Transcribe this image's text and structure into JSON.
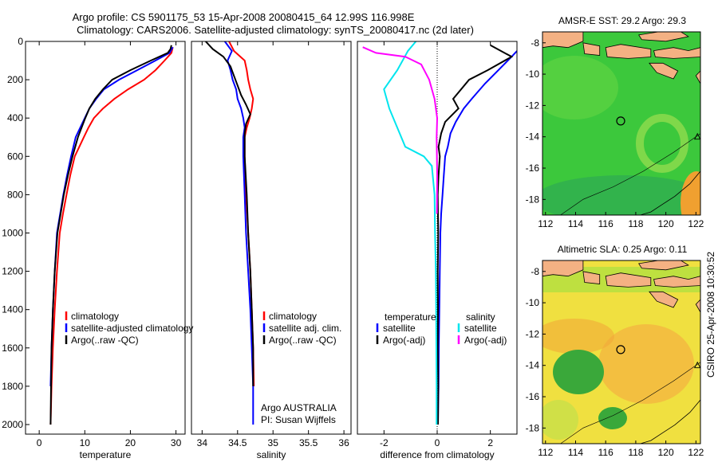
{
  "header": {
    "line1": "Argo profile: CS 5901175_53 15-Apr-2008 20080415_64 12.99S 116.998E",
    "line2": "Climatology: CARS2006. Satellite-adjusted climatology: synTS_20080417.nc (2d later)"
  },
  "side_label": "CSIRO 25-Apr-2008 10:30:52",
  "colors": {
    "climatology": "#ff0000",
    "satellite": "#0000ff",
    "argo": "#000000",
    "salinity_satellite": "#00e5ee",
    "salinity_argo": "#ff00ff",
    "land": "#f4b183",
    "ocean_green": "#3cc83c",
    "ocean_yellow": "#f0e040",
    "marker": "#000000"
  },
  "chart_data": [
    {
      "id": "temperature",
      "type": "line",
      "xlabel": "temperature",
      "ylabel": "",
      "xlim": [
        -3,
        32
      ],
      "ylim": [
        2050,
        0
      ],
      "xticks": [
        0,
        10,
        20,
        30
      ],
      "yticks": [
        0,
        200,
        400,
        600,
        800,
        1000,
        1200,
        1400,
        1600,
        1800,
        2000
      ],
      "legend": [
        "climatology",
        "satellite-adjusted climatology",
        "Argo(..raw -QC)"
      ],
      "legend_position": "lower-right",
      "series": [
        {
          "name": "climatology",
          "color": "#ff0000",
          "x": [
            29.3,
            29.0,
            27.5,
            25.5,
            23.0,
            19.5,
            16.5,
            14.0,
            12.0,
            10.8,
            9.8,
            8.8,
            7.8,
            6.8,
            6.0,
            5.2,
            4.5,
            3.9,
            3.4,
            3.0,
            2.7,
            2.5
          ],
          "y": [
            30,
            60,
            100,
            150,
            200,
            250,
            300,
            350,
            400,
            450,
            500,
            550,
            600,
            700,
            800,
            900,
            1000,
            1200,
            1400,
            1600,
            1800,
            2000
          ]
        },
        {
          "name": "satellite-adjusted climatology",
          "color": "#0000ff",
          "x": [
            29.3,
            28.6,
            25.5,
            21.5,
            17.5,
            14.2,
            12.5,
            11.0,
            10.0,
            9.0,
            8.0,
            7.0,
            6.1,
            5.3,
            4.6,
            3.9,
            3.4,
            3.0,
            2.7,
            2.5
          ],
          "y": [
            30,
            60,
            100,
            150,
            200,
            250,
            300,
            350,
            400,
            450,
            500,
            600,
            700,
            800,
            900,
            1000,
            1200,
            1400,
            1600,
            1800
          ]
        },
        {
          "name": "Argo(..raw -QC)",
          "color": "#000000",
          "x": [
            29.0,
            28.8,
            28.2,
            24.5,
            20.0,
            16.0,
            14.0,
            12.3,
            11.0,
            10.1,
            9.3,
            8.5,
            7.3,
            6.3,
            5.4,
            4.7,
            4.0,
            3.4,
            3.0,
            2.7,
            2.5
          ],
          "y": [
            20,
            40,
            60,
            100,
            150,
            200,
            250,
            300,
            350,
            400,
            450,
            500,
            600,
            700,
            800,
            900,
            1000,
            1200,
            1400,
            1600,
            2000
          ]
        }
      ]
    },
    {
      "id": "salinity",
      "type": "line",
      "xlabel": "salinity",
      "ylabel": "",
      "xlim": [
        33.85,
        36.1
      ],
      "ylim": [
        2050,
        0
      ],
      "xticks": [
        34,
        34.5,
        35,
        35.5,
        36
      ],
      "yticks": [],
      "legend": [
        "climatology",
        "satellite adj. clim.",
        "Argo(..raw -QC)"
      ],
      "legend_position": "lower-right",
      "annotations": [
        "Argo AUSTRALIA",
        "PI: Susan Wijffels"
      ],
      "series": [
        {
          "name": "climatology",
          "color": "#ff0000",
          "x": [
            34.38,
            34.45,
            34.6,
            34.63,
            34.65,
            34.68,
            34.72,
            34.7,
            34.67,
            34.63,
            34.6,
            34.6,
            34.62,
            34.65,
            34.68,
            34.7,
            34.72,
            34.73
          ],
          "y": [
            0,
            50,
            100,
            150,
            200,
            250,
            300,
            350,
            400,
            450,
            500,
            600,
            800,
            1000,
            1200,
            1400,
            1600,
            1800
          ]
        },
        {
          "name": "satellite adj. clim.",
          "color": "#0000ff",
          "x": [
            34.32,
            34.42,
            34.36,
            34.4,
            34.43,
            34.48,
            34.5,
            34.55,
            34.58,
            34.6,
            34.58,
            34.58,
            34.6,
            34.62,
            34.65,
            34.68,
            34.7,
            34.72,
            34.72
          ],
          "y": [
            0,
            50,
            100,
            150,
            200,
            250,
            300,
            350,
            400,
            450,
            500,
            600,
            800,
            1000,
            1200,
            1400,
            1600,
            1800,
            2000
          ]
        },
        {
          "name": "Argo(..raw -QC)",
          "color": "#000000",
          "x": [
            34.05,
            34.15,
            34.3,
            34.4,
            34.45,
            34.5,
            34.55,
            34.62,
            34.68,
            34.62,
            34.6,
            34.6,
            34.63,
            34.65,
            34.68,
            34.7,
            34.72,
            34.72
          ],
          "y": [
            0,
            40,
            80,
            130,
            180,
            230,
            280,
            330,
            380,
            430,
            480,
            600,
            800,
            1000,
            1200,
            1400,
            1600,
            1800
          ]
        }
      ]
    },
    {
      "id": "difference",
      "type": "line",
      "xlabel": "difference from climatology",
      "ylabel": "",
      "xlim": [
        -3,
        3
      ],
      "ylim": [
        2050,
        0
      ],
      "xticks": [
        -2,
        0,
        2
      ],
      "yticks": [],
      "legend_groups": [
        {
          "title": "temperature",
          "entries": [
            "satellite",
            "Argo(-adj)"
          ]
        },
        {
          "title": "salinity",
          "entries": [
            "satellite",
            "Argo(-adj)"
          ]
        }
      ],
      "legend_position": "lower",
      "series": [
        {
          "name": "temperature satellite",
          "color": "#0000ff",
          "x": [
            3.0,
            2.8,
            2.3,
            1.8,
            1.3,
            1.0,
            0.7,
            0.5,
            0.4,
            0.3,
            0.25,
            0.2,
            0.15,
            0.12,
            0.1,
            0.08,
            0.06,
            0.05,
            0.04,
            0.03
          ],
          "y": [
            50,
            80,
            150,
            220,
            300,
            350,
            420,
            480,
            550,
            600,
            700,
            800,
            900,
            1000,
            1200,
            1400,
            1600,
            1800,
            1900,
            2000
          ]
        },
        {
          "name": "temperature Argo(-adj)",
          "color": "#000000",
          "x": [
            2.0,
            2.8,
            1.9,
            1.2,
            0.6,
            0.8,
            0.3,
            0.15,
            0.05,
            0.1,
            0.05,
            0.02,
            0.04,
            0.02,
            0.03,
            0.02,
            0.04,
            0.03
          ],
          "y": [
            20,
            80,
            150,
            200,
            300,
            350,
            420,
            480,
            550,
            600,
            700,
            800,
            1000,
            1200,
            1400,
            1600,
            1800,
            2000
          ]
        },
        {
          "name": "salinity satellite",
          "color": "#00e5ee",
          "x": [
            -0.8,
            -1.1,
            -1.5,
            -2.0,
            -1.8,
            -1.5,
            -1.2,
            -0.5,
            -0.2,
            -0.1,
            -0.08,
            -0.05,
            -0.04,
            -0.03,
            -0.02,
            -0.02
          ],
          "y": [
            0,
            50,
            150,
            250,
            350,
            450,
            550,
            600,
            650,
            800,
            1000,
            1200,
            1400,
            1600,
            1800,
            2000
          ]
        },
        {
          "name": "salinity Argo(-adj)",
          "color": "#ff00ff",
          "x": [
            -2.8,
            -2.3,
            -1.2,
            -0.6,
            -0.3,
            -0.1,
            0.0,
            -0.02,
            0.0,
            -0.01
          ],
          "y": [
            30,
            60,
            80,
            120,
            200,
            300,
            400,
            500,
            700,
            900
          ]
        }
      ]
    }
  ],
  "maps": [
    {
      "id": "sst-map",
      "title": "AMSR-E SST: 29.2 Argo: 29.3",
      "xticks": [
        112,
        114,
        116,
        118,
        120,
        122
      ],
      "yticks": [
        -8,
        -10,
        -12,
        -14,
        -16,
        -18
      ],
      "xlim": [
        111.8,
        122.3
      ],
      "ylim": [
        -19.0,
        -7.3
      ],
      "float_position": {
        "lon": 116.998,
        "lat": -12.99
      },
      "triangle_marker": {
        "lon": 122.1,
        "lat": -14.0
      }
    },
    {
      "id": "sla-map",
      "title": "Altimetric SLA: 0.25 Argo: 0.11",
      "xticks": [
        112,
        114,
        116,
        118,
        120,
        122
      ],
      "yticks": [
        -8,
        -10,
        -12,
        -14,
        -16,
        -18
      ],
      "xlim": [
        111.8,
        122.3
      ],
      "ylim": [
        -19.0,
        -7.3
      ],
      "float_position": {
        "lon": 116.998,
        "lat": -12.99
      },
      "triangle_marker": {
        "lon": 122.1,
        "lat": -14.0
      }
    }
  ]
}
